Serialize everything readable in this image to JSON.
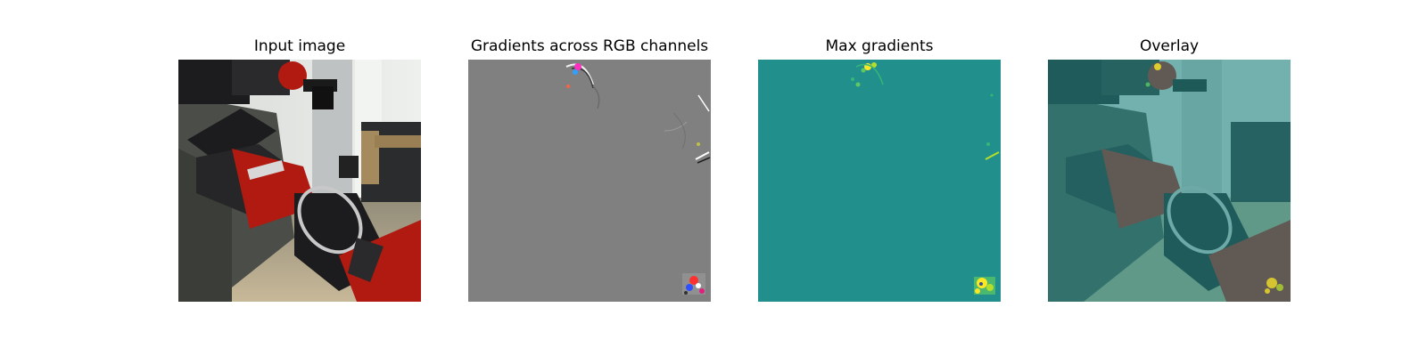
{
  "panels": [
    {
      "title": "Input image"
    },
    {
      "title": "Gradients across RGB channels"
    },
    {
      "title": "Max gradients"
    },
    {
      "title": "Overlay"
    }
  ],
  "colors": {
    "gradient_gray": "#808080",
    "max_gradient_teal": "#21908c",
    "highlight_yellow": "#fde725",
    "robot_red": "#b01a10",
    "robot_black": "#1c1c1e"
  }
}
